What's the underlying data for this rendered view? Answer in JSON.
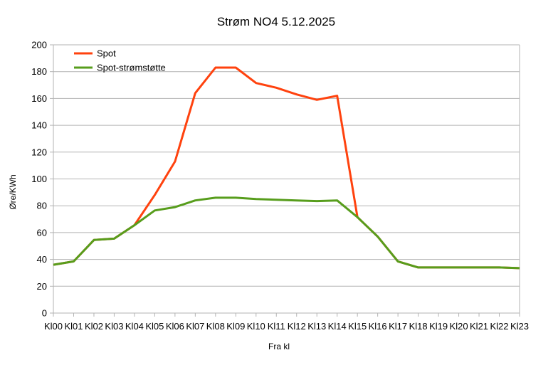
{
  "chart_data": {
    "type": "line",
    "title": "Strøm NO4 5.12.2025",
    "xlabel": "Fra kl",
    "ylabel": "Øre/KWh",
    "ylim": [
      0,
      200
    ],
    "yticks": [
      0,
      20,
      40,
      60,
      80,
      100,
      120,
      140,
      160,
      180,
      200
    ],
    "grid": true,
    "legend_position": "top-left",
    "categories": [
      "Kl00",
      "Kl01",
      "Kl02",
      "Kl03",
      "Kl04",
      "Kl05",
      "Kl06",
      "Kl07",
      "Kl08",
      "Kl09",
      "Kl10",
      "Kl11",
      "Kl12",
      "Kl13",
      "Kl14",
      "Kl15",
      "Kl16",
      "Kl17",
      "Kl18",
      "Kl19",
      "Kl20",
      "Kl21",
      "Kl22",
      "Kl23"
    ],
    "series": [
      {
        "name": "Spot",
        "color": "#ff420e",
        "values": [
          36,
          38.5,
          54.5,
          55.5,
          65.5,
          88,
          113,
          164,
          183,
          183,
          171.5,
          168,
          163,
          159,
          162,
          71.5,
          57,
          38.5,
          34,
          34,
          34,
          34,
          34,
          33.5
        ]
      },
      {
        "name": "Spot-strømstøtte",
        "color": "#579d1c",
        "values": [
          36,
          38.5,
          54.5,
          55.5,
          65.5,
          76.5,
          79,
          84,
          86,
          86,
          85,
          84.5,
          84,
          83.5,
          84,
          71.5,
          57,
          38.5,
          34,
          34,
          34,
          34,
          34,
          33.5
        ]
      }
    ]
  }
}
